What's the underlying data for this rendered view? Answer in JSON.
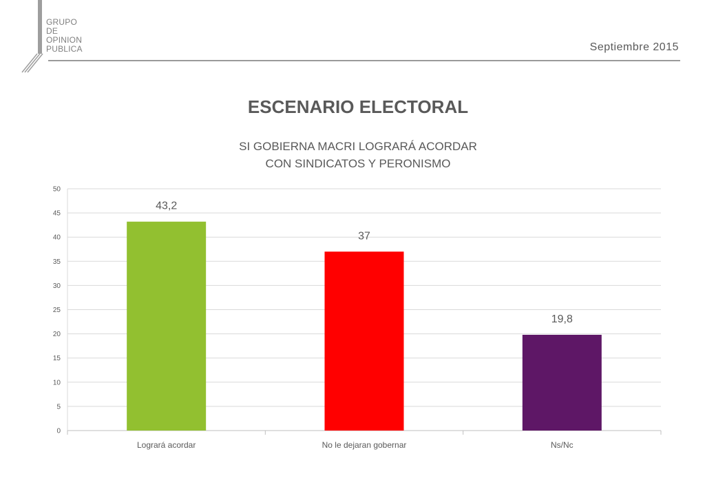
{
  "header": {
    "logo_text": "GRUPO\nDE\nOPINION\nPUBLICA",
    "date": "Septiembre 2015"
  },
  "title": "ESCENARIO ELECTORAL",
  "subtitle": [
    "SI GOBIERNA MACRI LOGRARÁ ACORDAR",
    "CON SINDICATOS Y PERONISMO"
  ],
  "chart_data": {
    "type": "bar",
    "categories": [
      "Logrará acordar",
      "No le dejaran gobernar",
      "Ns/Nc"
    ],
    "values": [
      43.2,
      37,
      19.8
    ],
    "value_labels": [
      "43,2",
      "37",
      "19,8"
    ],
    "colors": [
      "#92c030",
      "#ff0000",
      "#5e1766"
    ],
    "ylim": [
      0,
      50
    ],
    "yticks": [
      0,
      5,
      10,
      15,
      20,
      25,
      30,
      35,
      40,
      45,
      50
    ],
    "grid": true,
    "legend": "none"
  }
}
